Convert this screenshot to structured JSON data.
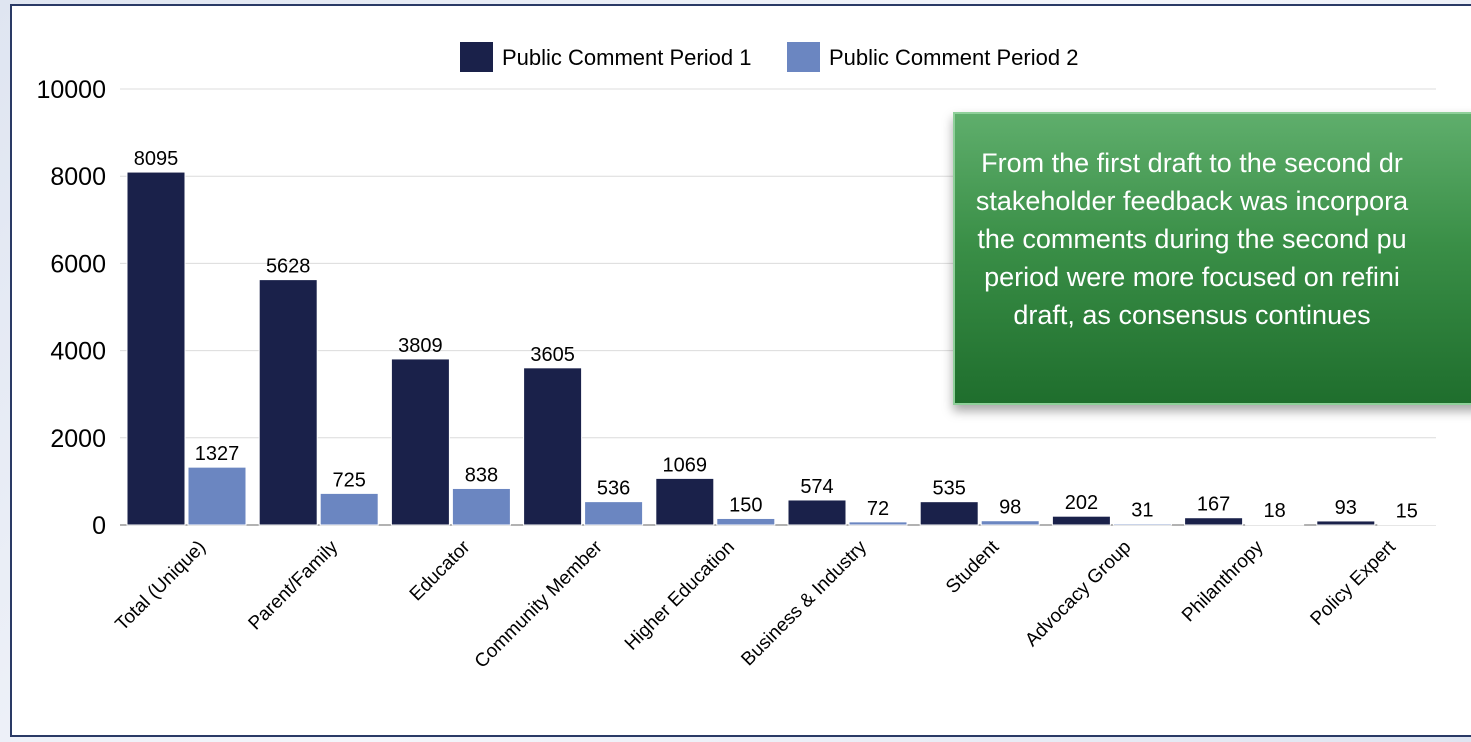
{
  "chart_data": {
    "type": "bar",
    "title": "",
    "xlabel": "",
    "ylabel": "",
    "ylim": [
      0,
      10000
    ],
    "yticks": [
      "0",
      "2000",
      "4000",
      "6000",
      "8000",
      "10000"
    ],
    "grid": true,
    "legend_position": "top-center",
    "categories": [
      "Total (Unique)",
      "Parent/Family",
      "Educator",
      "Community Member",
      "Higher Education",
      "Business & Industry",
      "Student",
      "Advocacy Group",
      "Philanthropy",
      "Policy Expert"
    ],
    "series": [
      {
        "name": "Public Comment Period 1",
        "color": "#1a214a",
        "values": [
          8095,
          5628,
          3809,
          3605,
          1069,
          574,
          535,
          202,
          167,
          93
        ]
      },
      {
        "name": "Public Comment Period 2",
        "color": "#6b86c1",
        "values": [
          1327,
          725,
          838,
          536,
          150,
          72,
          98,
          31,
          18,
          15
        ]
      }
    ],
    "annotation": "From the first draft to the second dr stakeholder feedback was incorpora the comments during the second pu period were more focused on refini draft, as consensus continues"
  }
}
